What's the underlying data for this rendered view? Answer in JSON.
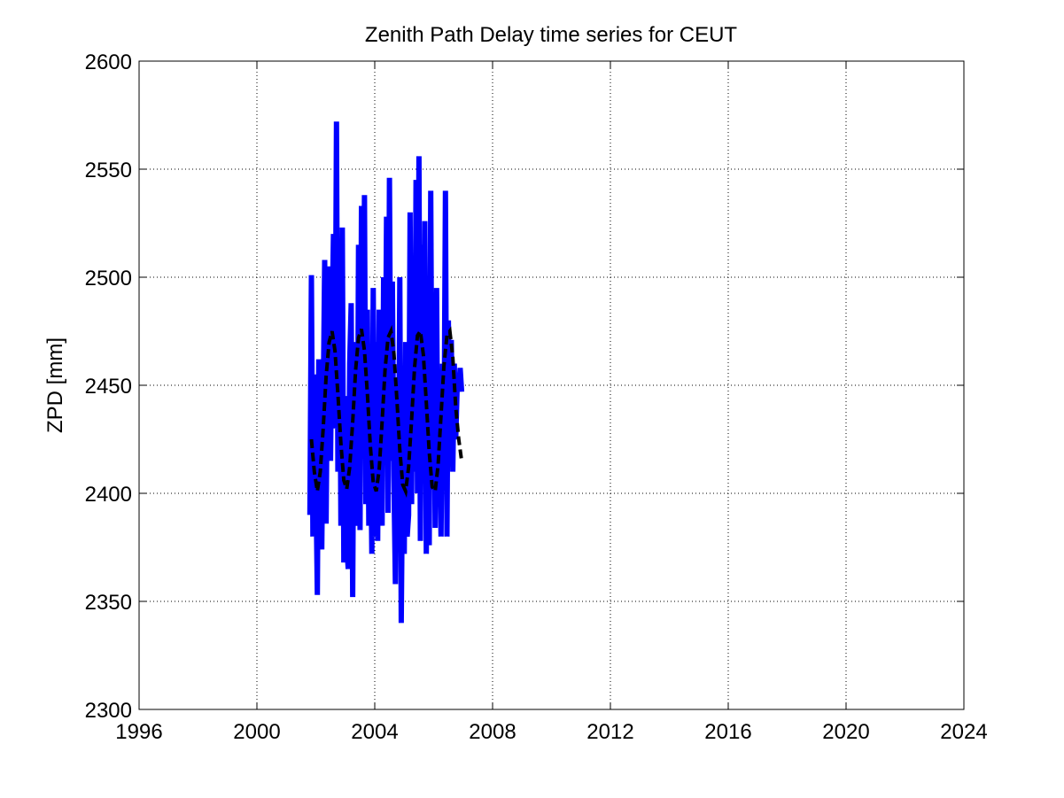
{
  "chart_data": {
    "type": "line",
    "title": "Zenith Path Delay time series for CEUT",
    "xlabel": "",
    "ylabel": "ZPD [mm]",
    "xlim": [
      1996,
      2024
    ],
    "ylim": [
      2300,
      2600
    ],
    "xticks": [
      1996,
      2000,
      2004,
      2008,
      2012,
      2016,
      2020,
      2024
    ],
    "yticks": [
      2300,
      2350,
      2400,
      2450,
      2500,
      2550,
      2600
    ],
    "grid": true,
    "series": [
      {
        "style": "solid",
        "color": "#0000ff",
        "x": [
          2001.8,
          2001.85,
          2001.9,
          2001.95,
          2002.0,
          2002.05,
          2002.1,
          2002.15,
          2002.2,
          2002.25,
          2002.3,
          2002.35,
          2002.4,
          2002.45,
          2002.5,
          2002.55,
          2002.6,
          2002.65,
          2002.7,
          2002.75,
          2002.8,
          2002.85,
          2002.9,
          2002.95,
          2003.0,
          2003.05,
          2003.1,
          2003.15,
          2003.2,
          2003.25,
          2003.3,
          2003.35,
          2003.4,
          2003.45,
          2003.5,
          2003.55,
          2003.6,
          2003.65,
          2003.7,
          2003.75,
          2003.8,
          2003.85,
          2003.9,
          2003.95,
          2004.0,
          2004.05,
          2004.1,
          2004.15,
          2004.2,
          2004.25,
          2004.3,
          2004.35,
          2004.4,
          2004.45,
          2004.5,
          2004.55,
          2004.6,
          2004.65,
          2004.7,
          2004.75,
          2004.8,
          2004.85,
          2004.9,
          2004.95,
          2005.0,
          2005.05,
          2005.1,
          2005.15,
          2005.2,
          2005.25,
          2005.3,
          2005.35,
          2005.4,
          2005.45,
          2005.5,
          2005.55,
          2005.6,
          2005.65,
          2005.7,
          2005.75,
          2005.8,
          2005.85,
          2005.9,
          2005.95,
          2006.0,
          2006.05,
          2006.1,
          2006.15,
          2006.2,
          2006.25,
          2006.3,
          2006.35,
          2006.4,
          2006.45,
          2006.5,
          2006.55,
          2006.6,
          2006.65,
          2006.7,
          2006.75,
          2006.8,
          2006.85,
          2006.9,
          2006.95
        ],
        "y": [
          2390,
          2501,
          2380,
          2455,
          2408,
          2353,
          2462,
          2400,
          2374,
          2440,
          2508,
          2386,
          2470,
          2505,
          2415,
          2478,
          2520,
          2430,
          2572,
          2410,
          2510,
          2385,
          2523,
          2368,
          2445,
          2375,
          2365,
          2460,
          2488,
          2352,
          2470,
          2406,
          2385,
          2515,
          2383,
          2533,
          2420,
          2538,
          2395,
          2485,
          2385,
          2440,
          2372,
          2495,
          2380,
          2470,
          2378,
          2485,
          2410,
          2385,
          2500,
          2425,
          2528,
          2391,
          2546,
          2415,
          2498,
          2408,
          2358,
          2450,
          2394,
          2500,
          2340,
          2420,
          2372,
          2470,
          2380,
          2390,
          2530,
          2395,
          2505,
          2410,
          2545,
          2400,
          2556,
          2378,
          2515,
          2415,
          2526,
          2372,
          2470,
          2376,
          2540,
          2405,
          2487,
          2384,
          2495,
          2395,
          2430,
          2380,
          2460,
          2418,
          2540,
          2380,
          2480,
          2428,
          2471,
          2410,
          2460,
          2425,
          2450,
          2448,
          2458,
          2447
        ]
      },
      {
        "style": "dashed",
        "color": "#000000",
        "x": [
          2001.85,
          2001.95,
          2002.05,
          2002.15,
          2002.25,
          2002.35,
          2002.45,
          2002.55,
          2002.65,
          2002.75,
          2002.85,
          2002.95,
          2003.05,
          2003.15,
          2003.25,
          2003.35,
          2003.45,
          2003.55,
          2003.65,
          2003.75,
          2003.85,
          2003.95,
          2004.05,
          2004.15,
          2004.25,
          2004.35,
          2004.45,
          2004.55,
          2004.65,
          2004.75,
          2004.85,
          2004.95,
          2005.05,
          2005.15,
          2005.25,
          2005.35,
          2005.45,
          2005.55,
          2005.65,
          2005.75,
          2005.85,
          2005.95,
          2006.05,
          2006.15,
          2006.25,
          2006.35,
          2006.45,
          2006.55,
          2006.65,
          2006.75,
          2006.85,
          2006.95
        ],
        "y": [
          2425,
          2410,
          2401,
          2410,
          2430,
          2454,
          2470,
          2475,
          2466,
          2446,
          2423,
          2406,
          2402,
          2412,
          2433,
          2457,
          2472,
          2476,
          2466,
          2446,
          2422,
          2405,
          2401,
          2411,
          2433,
          2457,
          2472,
          2475,
          2465,
          2444,
          2420,
          2404,
          2401,
          2412,
          2434,
          2458,
          2473,
          2475,
          2464,
          2442,
          2419,
          2403,
          2401,
          2413,
          2436,
          2459,
          2473,
          2475,
          2463,
          2440,
          2425,
          2415
        ]
      }
    ]
  }
}
